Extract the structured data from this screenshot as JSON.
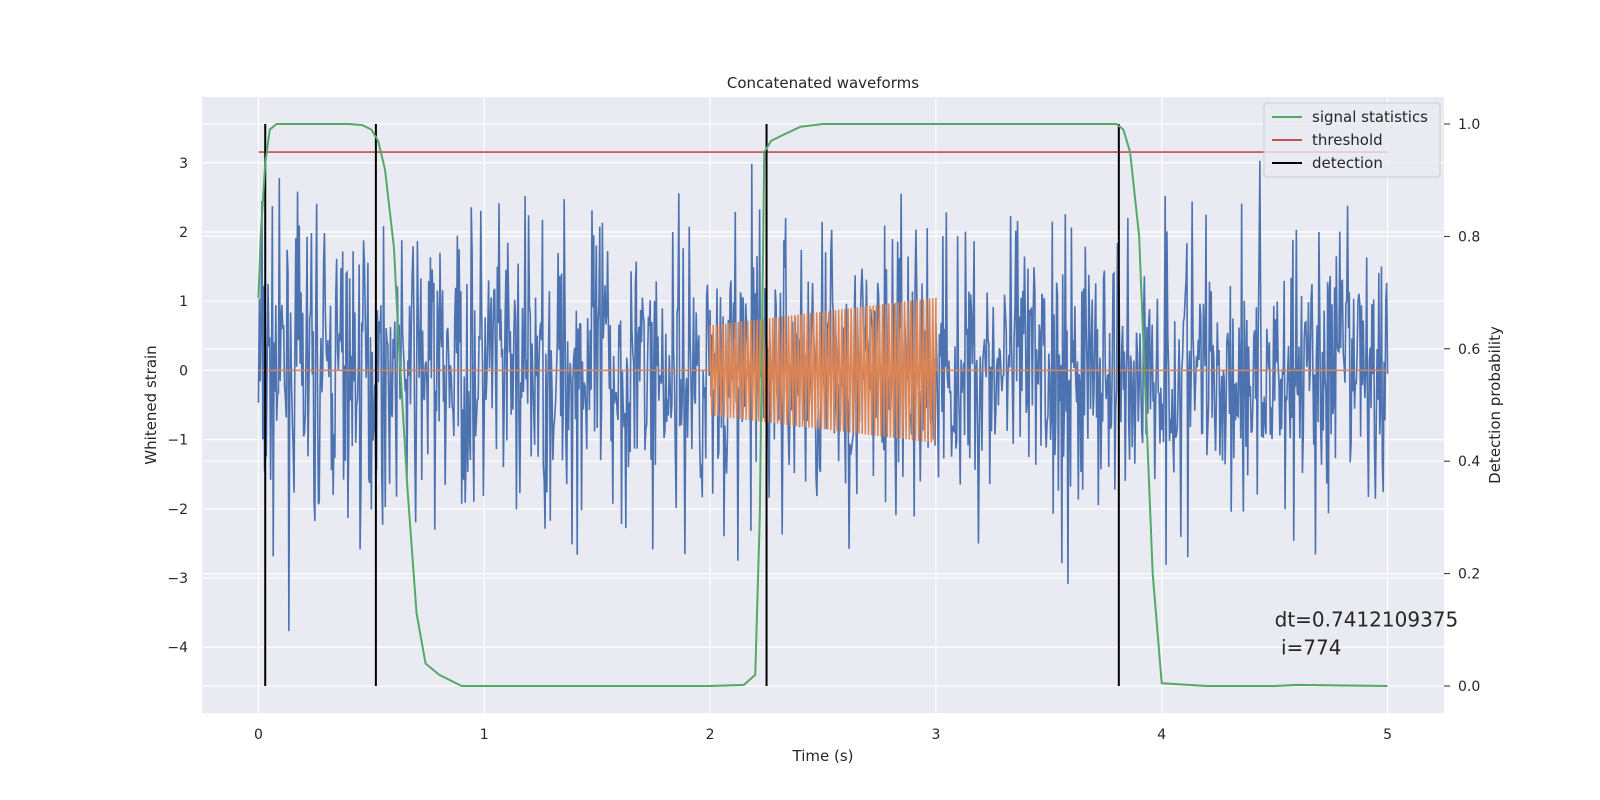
{
  "chart_data": {
    "type": "line",
    "title": "Concatenated waveforms",
    "xlabel": "Time (s)",
    "ylabel": "Whitened strain",
    "y2label": "Detection probability",
    "xlim": [
      -0.25,
      5.25
    ],
    "ylim": [
      -4.95,
      3.95
    ],
    "y2lim": [
      -0.048,
      1.048
    ],
    "xticks": [
      0,
      1,
      2,
      3,
      4,
      5
    ],
    "yticks": [
      -4,
      -3,
      -2,
      -1,
      0,
      1,
      2,
      3
    ],
    "y2ticks": [
      0.0,
      0.2,
      0.4,
      0.6,
      0.8,
      1.0
    ],
    "grid": true,
    "legend_position": "top-right",
    "series": [
      {
        "name": "",
        "kind": "noise",
        "color": "#4c72b0",
        "x_range": [
          0,
          5
        ],
        "samples": 1300,
        "seed": 7,
        "std": 1.05,
        "y_min": -4.6,
        "y_max": 3.55
      },
      {
        "name": "",
        "kind": "chirp",
        "color": "#dd8452",
        "baseline": 0.0,
        "chirp_start": 2.0,
        "chirp_end": 3.0,
        "amp_start": 0.65,
        "amp_end": 1.05,
        "cycles": 72
      },
      {
        "name": "signal statistics",
        "axis": "right",
        "color": "#55a868",
        "x": [
          0,
          0.01,
          0.03,
          0.05,
          0.08,
          0.12,
          0.2,
          0.3,
          0.4,
          0.46,
          0.5,
          0.53,
          0.56,
          0.6,
          0.62,
          0.66,
          0.7,
          0.74,
          0.8,
          0.9,
          1.0,
          1.5,
          2.0,
          2.15,
          2.2,
          2.22,
          2.24,
          2.27,
          2.32,
          2.4,
          2.5,
          3.0,
          3.5,
          3.8,
          3.83,
          3.86,
          3.9,
          3.93,
          3.96,
          4.0,
          4.2,
          4.5,
          4.6,
          5.0
        ],
        "y": [
          0.69,
          0.8,
          0.93,
          0.99,
          1.0,
          1.0,
          1.0,
          1.0,
          1.0,
          0.998,
          0.99,
          0.97,
          0.92,
          0.78,
          0.62,
          0.35,
          0.13,
          0.04,
          0.02,
          0.0,
          0.0,
          0.0,
          0.0,
          0.002,
          0.02,
          0.3,
          0.95,
          0.97,
          0.98,
          0.995,
          1.0,
          1.0,
          1.0,
          1.0,
          0.99,
          0.95,
          0.8,
          0.5,
          0.2,
          0.005,
          0.0,
          0.0,
          0.002,
          0.0
        ]
      },
      {
        "name": "threshold",
        "axis": "right",
        "color": "#c44e52",
        "x": [
          0,
          5
        ],
        "y": [
          0.95,
          0.95
        ]
      },
      {
        "name": "detection",
        "axis": "right",
        "color": "#000000",
        "x": [
          0.03,
          0.52,
          2.25,
          3.81
        ]
      }
    ],
    "annotation": {
      "line1": "dt=0.7412109375",
      "line2": " i=774",
      "x": 4.5,
      "y": -3.7
    }
  },
  "colors": {
    "axes_bg": "#eaeaf2",
    "grid": "#ffffff",
    "text": "#262626"
  }
}
